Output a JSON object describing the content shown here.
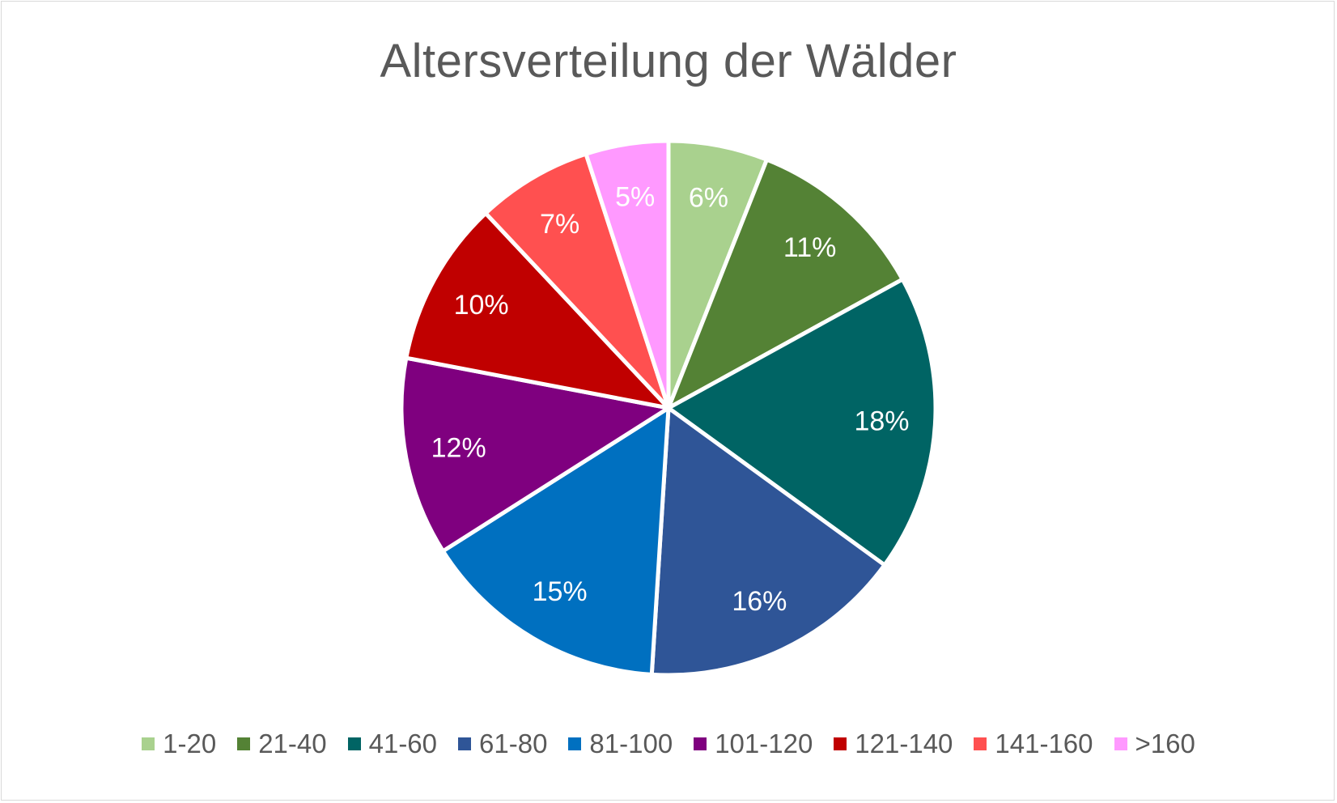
{
  "chart_data": {
    "type": "pie",
    "title": "Altersverteilung der Wälder",
    "categories": [
      "1-20",
      "21-40",
      "41-60",
      "61-80",
      "81-100",
      "101-120",
      "121-140",
      "141-160",
      ">160"
    ],
    "values": [
      6,
      11,
      18,
      16,
      15,
      12,
      10,
      7,
      5
    ],
    "labels": [
      "6%",
      "11%",
      "18%",
      "16%",
      "15%",
      "12%",
      "10%",
      "7%",
      "5%"
    ],
    "colors": [
      "#a9d18e",
      "#548235",
      "#006464",
      "#2f5597",
      "#0070c0",
      "#7f007f",
      "#c00000",
      "#ff5050",
      "#ff99ff"
    ],
    "legend": "bottom",
    "start_angle": "top, clockwise"
  }
}
